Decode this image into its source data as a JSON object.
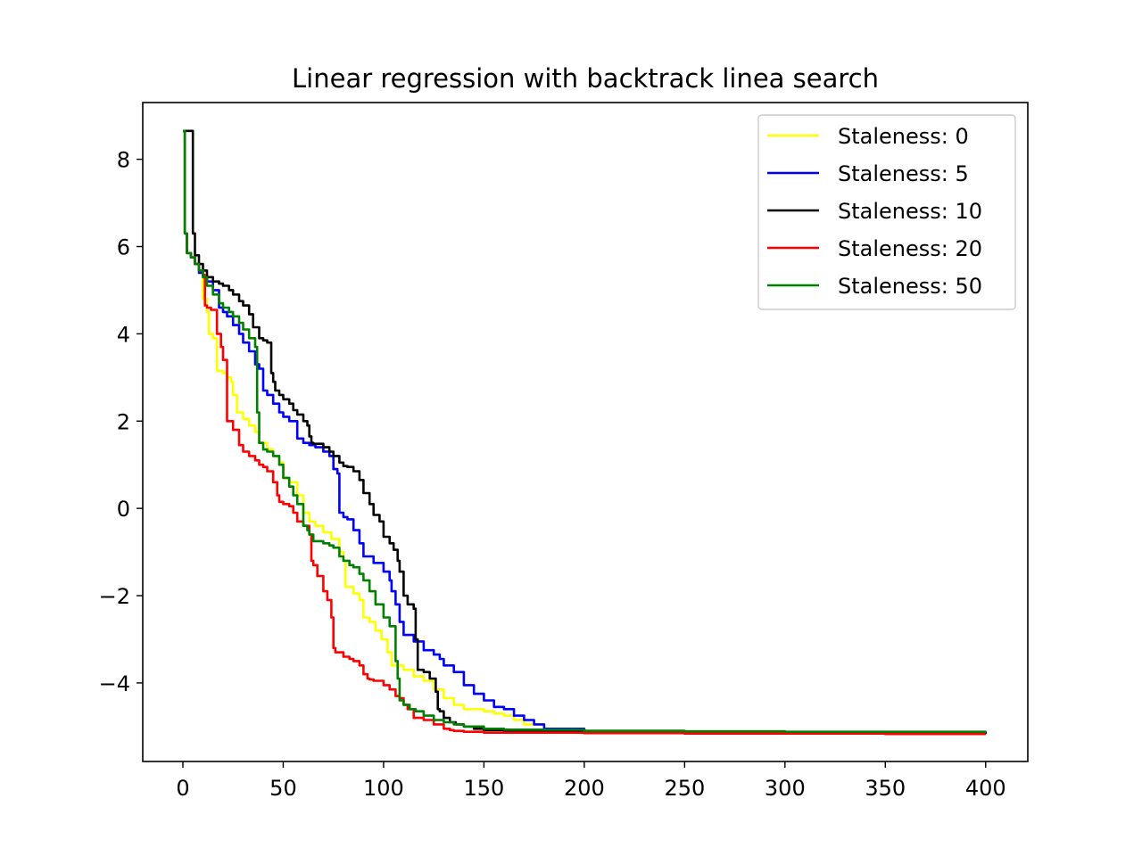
{
  "chart_data": {
    "type": "line",
    "title": "Linear regression with backtrack linea search",
    "xlabel": "",
    "ylabel": "",
    "xlim": [
      -20,
      421
    ],
    "ylim": [
      -5.8,
      9.3
    ],
    "x_ticks": [
      0,
      50,
      100,
      150,
      200,
      250,
      300,
      350,
      400
    ],
    "y_ticks": [
      8,
      6,
      4,
      2,
      0,
      -2,
      -4
    ],
    "y_tick_labels": [
      "8",
      "6",
      "4",
      "2",
      "0",
      "−2",
      "−4"
    ],
    "grid": false,
    "legend_position": "top-right",
    "series": [
      {
        "name": "Staleness: 0",
        "color": "#ffff00",
        "x": [
          0,
          1,
          2,
          4,
          6,
          8,
          10,
          12,
          13,
          15,
          17,
          20,
          22,
          24,
          25,
          27,
          30,
          33,
          36,
          38,
          42,
          45,
          48,
          50,
          53,
          57,
          60,
          63,
          66,
          70,
          74,
          78,
          80,
          81,
          85,
          88,
          90,
          93,
          96,
          99,
          102,
          104,
          105,
          110,
          115,
          120,
          125,
          130,
          135,
          140,
          145,
          150,
          155,
          160,
          165,
          170,
          180,
          200,
          250,
          300,
          350,
          400
        ],
        "y": [
          8.65,
          6.3,
          5.85,
          5.75,
          5.6,
          5.4,
          4.8,
          4.5,
          4.0,
          3.9,
          3.15,
          3.1,
          3.0,
          2.9,
          2.6,
          2.2,
          2.05,
          1.9,
          1.75,
          1.5,
          1.35,
          1.2,
          1.05,
          0.7,
          0.6,
          0.3,
          -0.1,
          -0.3,
          -0.4,
          -0.55,
          -0.7,
          -1.0,
          -1.2,
          -1.8,
          -1.95,
          -2.1,
          -2.5,
          -2.6,
          -2.8,
          -3.0,
          -3.3,
          -3.6,
          -3.6,
          -3.7,
          -3.85,
          -3.95,
          -4.15,
          -4.35,
          -4.5,
          -4.6,
          -4.6,
          -4.65,
          -4.7,
          -4.75,
          -4.85,
          -4.95,
          -5.05,
          -5.1,
          -5.12,
          -5.13,
          -5.14,
          -5.15
        ]
      },
      {
        "name": "Staleness: 5",
        "color": "#0000ff",
        "x": [
          0,
          1,
          2,
          4,
          6,
          8,
          10,
          12,
          15,
          18,
          20,
          22,
          25,
          28,
          30,
          33,
          36,
          38,
          40,
          42,
          45,
          48,
          50,
          53,
          57,
          60,
          63,
          66,
          70,
          73,
          75,
          77,
          78,
          80,
          82,
          85,
          88,
          90,
          95,
          100,
          103,
          104,
          106,
          108,
          110,
          115,
          120,
          125,
          128,
          130,
          135,
          140,
          145,
          150,
          155,
          160,
          165,
          170,
          175,
          180,
          200,
          250,
          300,
          350,
          400
        ],
        "y": [
          8.65,
          6.3,
          5.85,
          5.75,
          5.6,
          5.4,
          5.3,
          5.2,
          5.0,
          4.6,
          4.5,
          4.4,
          4.2,
          4.0,
          3.8,
          3.6,
          3.3,
          3.2,
          2.7,
          2.6,
          2.4,
          2.2,
          2.1,
          2.0,
          1.6,
          1.5,
          1.45,
          1.4,
          1.3,
          1.2,
          0.9,
          0.8,
          -0.1,
          -0.2,
          -0.25,
          -0.5,
          -0.8,
          -1.1,
          -1.25,
          -1.45,
          -1.65,
          -1.9,
          -2.2,
          -2.6,
          -2.9,
          -3.05,
          -3.25,
          -3.35,
          -3.45,
          -3.6,
          -3.75,
          -4.05,
          -4.25,
          -4.4,
          -4.55,
          -4.6,
          -4.75,
          -4.85,
          -4.95,
          -5.05,
          -5.1,
          -5.12,
          -5.13,
          -5.14,
          -5.15
        ]
      },
      {
        "name": "Staleness: 10",
        "color": "#000000",
        "x": [
          0,
          1,
          2,
          3,
          4,
          5,
          6,
          8,
          10,
          12,
          15,
          18,
          20,
          23,
          25,
          28,
          30,
          33,
          35,
          38,
          40,
          42,
          44,
          45,
          46,
          48,
          50,
          53,
          55,
          57,
          60,
          62,
          63,
          64,
          65,
          70,
          73,
          75,
          78,
          80,
          82,
          85,
          88,
          90,
          93,
          95,
          98,
          100,
          103,
          105,
          107,
          108,
          110,
          112,
          115,
          116,
          117,
          120,
          123,
          126,
          127,
          128,
          130,
          133,
          136,
          140,
          145,
          150,
          160,
          170,
          200,
          250,
          300,
          350,
          400
        ],
        "y": [
          8.65,
          8.65,
          8.65,
          8.65,
          8.65,
          6.3,
          5.8,
          5.6,
          5.45,
          5.3,
          5.2,
          5.15,
          5.1,
          5.0,
          4.9,
          4.75,
          4.65,
          4.45,
          4.15,
          3.9,
          3.85,
          3.8,
          3.1,
          2.9,
          2.7,
          2.6,
          2.5,
          2.4,
          2.25,
          2.15,
          2.0,
          1.9,
          1.65,
          1.5,
          1.48,
          1.4,
          1.3,
          1.2,
          1.05,
          0.97,
          0.95,
          0.85,
          0.65,
          0.35,
          0.1,
          -0.15,
          -0.3,
          -0.65,
          -0.8,
          -0.95,
          -1.2,
          -1.45,
          -2.0,
          -2.2,
          -2.3,
          -3.0,
          -3.7,
          -3.75,
          -3.9,
          -4.2,
          -4.6,
          -4.65,
          -4.8,
          -4.9,
          -4.95,
          -5.0,
          -5.05,
          -5.08,
          -5.1,
          -5.12,
          -5.13,
          -5.14,
          -5.15,
          -5.16,
          -5.17
        ]
      },
      {
        "name": "Staleness: 20",
        "color": "#ff0000",
        "x": [
          0,
          1,
          2,
          4,
          6,
          8,
          10,
          11,
          12,
          14,
          17,
          19,
          20,
          22,
          25,
          28,
          30,
          33,
          36,
          38,
          40,
          42,
          45,
          47,
          48,
          50,
          53,
          55,
          57,
          60,
          63,
          64,
          65,
          67,
          70,
          72,
          74,
          75,
          76,
          80,
          83,
          85,
          88,
          90,
          92,
          93,
          95,
          100,
          103,
          106,
          108,
          110,
          112,
          115,
          120,
          125,
          130,
          133,
          135,
          140,
          150,
          200,
          250,
          300,
          350,
          400
        ],
        "y": [
          8.65,
          6.3,
          5.85,
          5.75,
          5.6,
          5.45,
          5.35,
          4.65,
          4.6,
          4.55,
          4.0,
          3.7,
          3.4,
          2.0,
          1.8,
          1.45,
          1.3,
          1.2,
          1.1,
          1.0,
          0.95,
          0.85,
          0.6,
          0.3,
          0.15,
          0.1,
          0.05,
          -0.1,
          -0.3,
          -0.4,
          -0.6,
          -1.2,
          -1.3,
          -1.55,
          -1.9,
          -2.1,
          -2.5,
          -3.2,
          -3.3,
          -3.4,
          -3.45,
          -3.5,
          -3.6,
          -3.8,
          -3.9,
          -3.92,
          -3.95,
          -4.05,
          -4.15,
          -4.3,
          -4.35,
          -4.5,
          -4.6,
          -4.8,
          -4.85,
          -4.95,
          -5.05,
          -5.08,
          -5.1,
          -5.12,
          -5.14,
          -5.15,
          -5.16,
          -5.16,
          -5.17,
          -5.17
        ]
      },
      {
        "name": "Staleness: 50",
        "color": "#008000",
        "x": [
          0,
          1,
          2,
          4,
          6,
          8,
          10,
          12,
          15,
          18,
          20,
          23,
          25,
          28,
          30,
          33,
          36,
          37,
          38,
          40,
          42,
          45,
          48,
          50,
          53,
          55,
          57,
          60,
          62,
          63,
          65,
          70,
          73,
          75,
          78,
          80,
          83,
          85,
          88,
          90,
          93,
          96,
          100,
          103,
          106,
          107,
          108,
          110,
          113,
          116,
          120,
          125,
          130,
          135,
          140,
          150,
          160,
          200,
          250,
          300,
          350,
          400
        ],
        "y": [
          8.65,
          6.3,
          5.85,
          5.75,
          5.6,
          5.45,
          5.3,
          5.1,
          4.9,
          4.7,
          4.6,
          4.5,
          4.4,
          4.25,
          4.1,
          3.9,
          3.7,
          2.2,
          1.5,
          1.35,
          1.3,
          1.2,
          1.0,
          0.7,
          0.5,
          0.3,
          0.1,
          -0.4,
          -0.5,
          -0.6,
          -0.75,
          -0.8,
          -0.85,
          -0.9,
          -1.1,
          -1.2,
          -1.3,
          -1.35,
          -1.5,
          -1.65,
          -1.9,
          -2.2,
          -2.5,
          -2.7,
          -3.5,
          -3.9,
          -4.4,
          -4.5,
          -4.6,
          -4.65,
          -4.75,
          -4.85,
          -4.9,
          -4.95,
          -5.0,
          -5.05,
          -5.07,
          -5.1,
          -5.11,
          -5.12,
          -5.12,
          -5.13
        ]
      }
    ]
  }
}
